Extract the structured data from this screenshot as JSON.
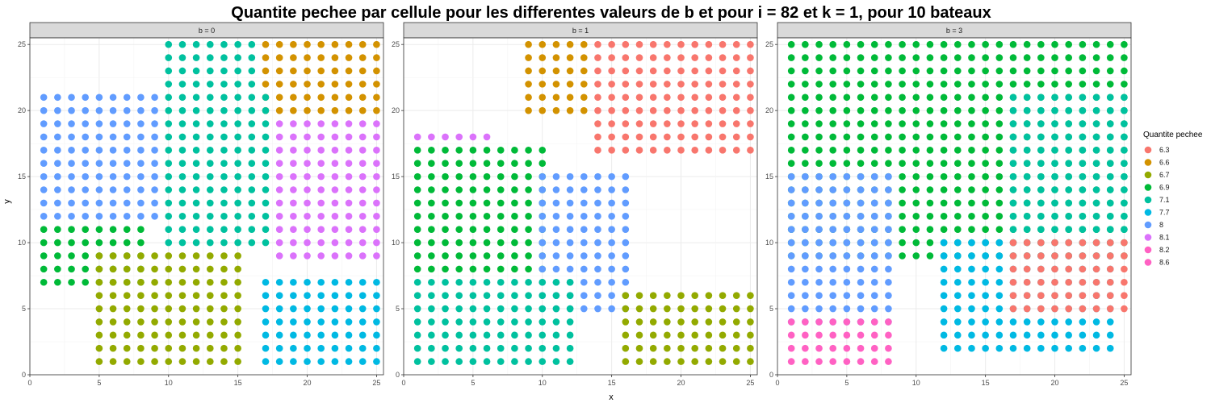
{
  "chart_data": {
    "type": "scatter",
    "title": "Quantite pechee par cellule pour les differentes valeurs de b et pour i = 82 et k = 1, pour 10 bateaux",
    "xlabel": "x",
    "ylabel": "y",
    "xlim": [
      0,
      25.5
    ],
    "ylim": [
      0,
      25.5
    ],
    "xticks": [
      0,
      5,
      10,
      15,
      20,
      25
    ],
    "yticks": [
      0,
      5,
      10,
      15,
      20,
      25
    ],
    "grid": true,
    "legend_title": "Quantite pechee",
    "legend_position": "right",
    "legend": [
      {
        "label": "6.3",
        "color": "#F8766D"
      },
      {
        "label": "6.6",
        "color": "#D39200"
      },
      {
        "label": "6.7",
        "color": "#93AA00"
      },
      {
        "label": "6.9",
        "color": "#00BA38"
      },
      {
        "label": "7.1",
        "color": "#00C19F"
      },
      {
        "label": "7.7",
        "color": "#00B9E3"
      },
      {
        "label": "8",
        "color": "#619CFF"
      },
      {
        "label": "8.1",
        "color": "#DB72FB"
      },
      {
        "label": "8.2",
        "color": "#FF61C3"
      },
      {
        "label": "8.6",
        "color": "#FF61C3"
      }
    ],
    "panels": [
      {
        "strip": "b = 0",
        "regions": [
          {
            "color": "#00C19F",
            "x0": 10,
            "x1": 16,
            "y0": 22,
            "y1": 25
          },
          {
            "color": "#D39200",
            "x0": 17,
            "x1": 25,
            "y0": 20,
            "y1": 25
          },
          {
            "color": "#00C19F",
            "x0": 10,
            "x1": 17,
            "y0": 10,
            "y1": 21
          },
          {
            "color": "#DB72FB",
            "x0": 18,
            "x1": 25,
            "y0": 9,
            "y1": 19
          },
          {
            "color": "#619CFF",
            "x0": 1,
            "x1": 9,
            "y0": 12,
            "y1": 21
          },
          {
            "color": "#00BA38",
            "x0": 1,
            "x1": 8,
            "y0": 7,
            "y1": 11
          },
          {
            "color": "#93AA00",
            "x0": 5,
            "x1": 15,
            "y0": 1,
            "y1": 9
          },
          {
            "color": "#00B9E3",
            "x0": 17,
            "x1": 25,
            "y0": 1,
            "y1": 7
          }
        ]
      },
      {
        "strip": "b = 1",
        "regions": [
          {
            "color": "#D39200",
            "x0": 9,
            "x1": 13,
            "y0": 20,
            "y1": 25
          },
          {
            "color": "#F8766D",
            "x0": 14,
            "x1": 25,
            "y0": 17,
            "y1": 25
          },
          {
            "color": "#DB72FB",
            "x0": 1,
            "x1": 6,
            "y0": 18,
            "y1": 18
          },
          {
            "color": "#00BA38",
            "x0": 1,
            "x1": 10,
            "y0": 8,
            "y1": 17
          },
          {
            "color": "#619CFF",
            "x0": 10,
            "x1": 16,
            "y0": 5,
            "y1": 15
          },
          {
            "color": "#00C19F",
            "x0": 1,
            "x1": 12,
            "y0": 1,
            "y1": 7
          },
          {
            "color": "#93AA00",
            "x0": 16,
            "x1": 25,
            "y0": 1,
            "y1": 6
          }
        ]
      },
      {
        "strip": "b = 3",
        "regions": [
          {
            "color": "#00BA38",
            "x0": 1,
            "x1": 25,
            "y0": 9,
            "y1": 25
          },
          {
            "color": "#00C19F",
            "x0": 17,
            "x1": 25,
            "y0": 11,
            "y1": 21
          },
          {
            "color": "#619CFF",
            "x0": 1,
            "x1": 8,
            "y0": 4,
            "y1": 15
          },
          {
            "color": "#FF61C3",
            "x0": 1,
            "x1": 8,
            "y0": 1,
            "y1": 4
          },
          {
            "color": "#00B9E3",
            "x0": 12,
            "x1": 24,
            "y0": 2,
            "y1": 10
          },
          {
            "color": "#F8766D",
            "x0": 17,
            "x1": 25,
            "y0": 5,
            "y1": 10
          }
        ]
      }
    ]
  }
}
